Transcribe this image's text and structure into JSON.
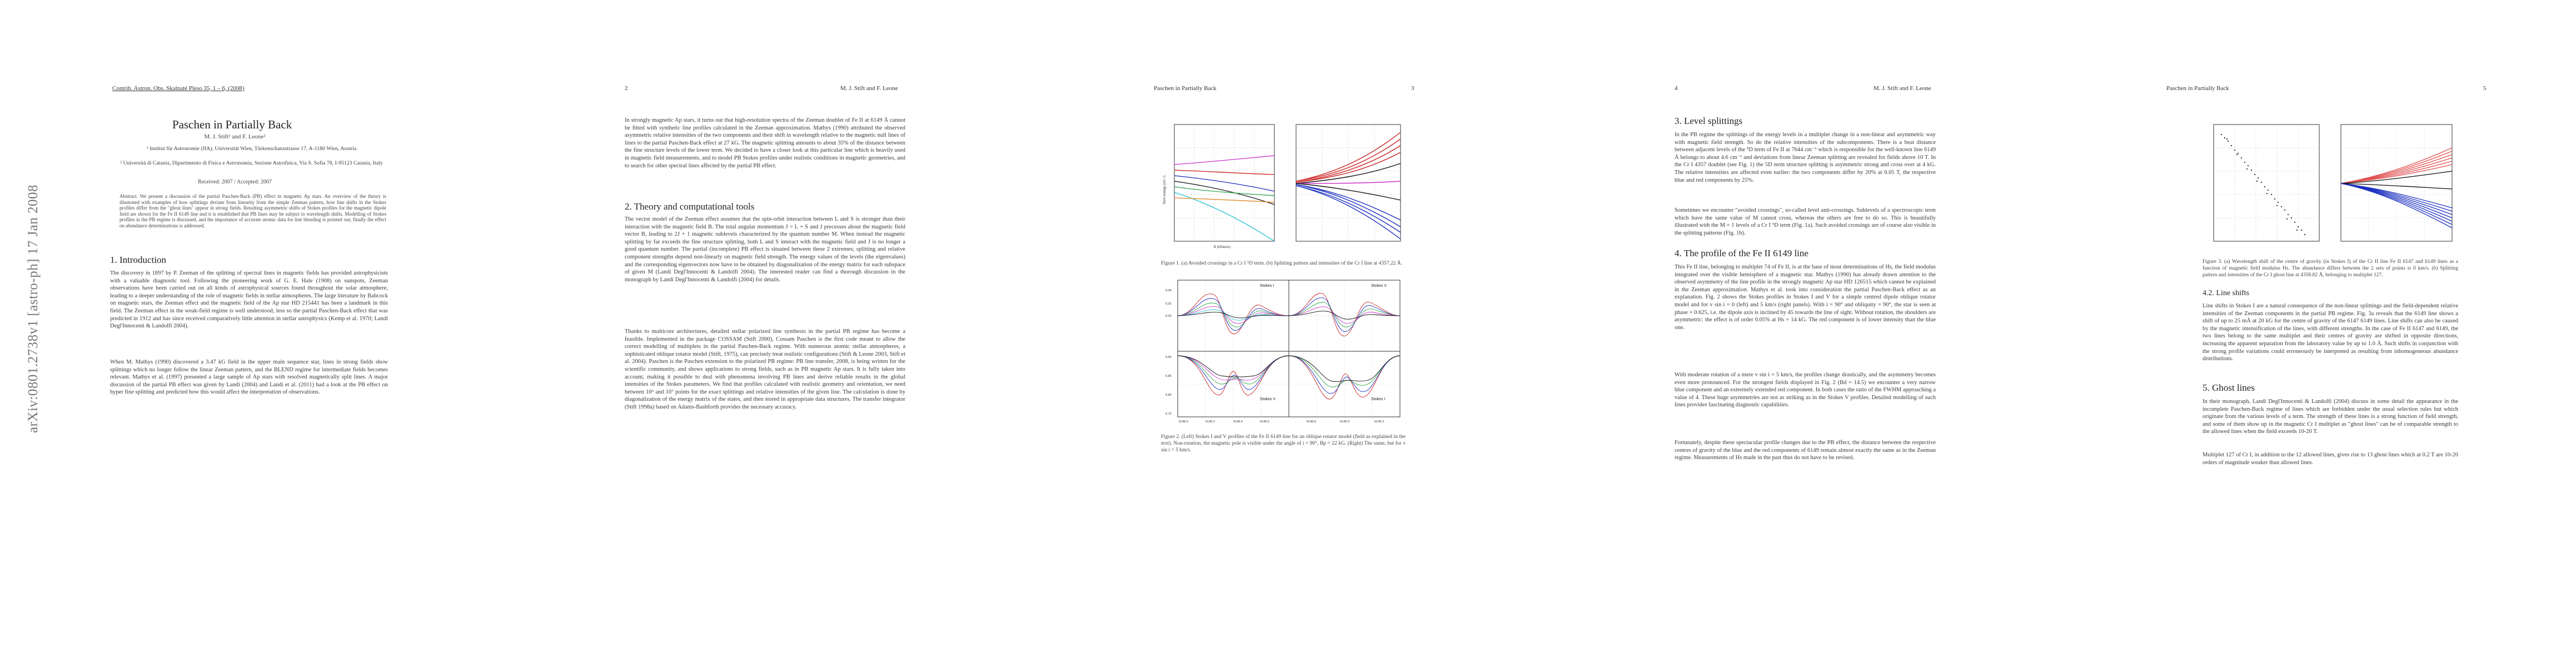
{
  "arxiv_stamp": "arXiv:0801.2738v1  [astro-ph]  17 Jan 2008",
  "page1": {
    "running_head": "Contrib. Astron. Obs. Skalnaté Pleso 35, 1 – 6, (2008)",
    "title": "Paschen in Partially Back",
    "authors": "M. J. Stift¹ and F. Leone²",
    "affil1": "¹ Institut für Astronomie (IfA), Universität Wien, Türkenschanzstrasse 17, A-1180 Wien, Austria",
    "affil2": "² Università di Catania, Dipartimento di Fisica e Astronomia, Sezione Astrofisica, Via S. Sofia 78, I-95123 Catania, Italy",
    "received": "Received: 2007 / Accepted: 2007",
    "abstract": "Abstract. We present a discussion of the partial Paschen-Back (PB) effect in magnetic Ap stars. An overview of the theory is illustrated with examples of how splittings deviate from linearity from the simple Zeeman pattern, how line shifts in the Stokes profiles differ from the \"ghost lines\" appear in strong fields. Resulting asymmetric shifts of Stokes profiles for the magnetic dipole field are shown for the Fe II 6149 line and it is established that PB lines may be subject to wavelength shifts. Modelling of Stokes profiles in the PB regime is discussed, and the importance of accurate atomic data for line blending is pointed out; finally the effect on abundance determinations is addressed.",
    "sec_title": "1. Introduction",
    "intro_p1": "The discovery in 1897 by P. Zeeman of the splitting of spectral lines in magnetic fields has provided astrophysicists with a valuable diagnostic tool. Following the pioneering work of G. E. Hale (1908) on sunspots, Zeeman observations have been carried out on all kinds of astrophysical sources found throughout the solar atmosphere, leading to a deeper understanding of the role of magnetic fields in stellar atmospheres. The large literature by Babcock on magnetic stars, the Zeeman effect and the magnetic field of the Ap star HD 215441 has been a landmark in this field. The Zeeman effect in the weak-field regime is well understood; less so the partial Paschen-Back effect that was predicted in 1912 and has since received comparatively little attention in stellar astrophysics (Kemp et al. 1970; Landi Degl'Innocenti & Landolfi 2004).",
    "intro_p2": "When M. Mathys (1990) discovered a 3.47 kG field in the upper main sequence star, lines in strong fields show splittings which no longer follow the linear Zeeman pattern, and the BLEND regime for intermediate fields becomes relevant. Mathys et al. (1997) presented a large sample of Ap stars with resolved magnetically split lines. A major discussion of the partial PB effect was given by Landi (2004) and Landi et al. (2011) had a look at the PB effect on hyper fine splitting and predicted how this would affect the interpretation of observations."
  },
  "page2": {
    "running_head": "M. J. Stift and F. Leone",
    "page_number": "2",
    "p1": "In strongly magnetic Ap stars, it turns out that high-resolution spectra of the Zeeman doublet of Fe II at 6149 Å cannot be fitted with synthetic line profiles calculated in the Zeeman approximation. Mathys (1990) attributed the observed asymmetric relative intensities of the two components and their shift in wavelength relative to the magnetic null lines of lines to the partial Paschen-Back effect at 27 kG. The magnetic splitting amounts to about 35% of the distance between the fine structure levels of the lower term. We decided to have a closer look at this particular line which is heavily used in magnetic field measurements, and to model PB Stokes profiles under realistic conditions in magnetic geometries, and to search for other spectral lines affected by the partial PB effect.",
    "sec_title": "2. Theory and computational tools",
    "p2": "The vector model of the Zeeman effect assumes that the spin-orbit interaction between L and S is stronger than their interaction with the magnetic field B. The total angular momentum J = L + S and J precesses about the magnetic field vector B, leading to 2J + 1 magnetic sublevels characterized by the quantum number M. When instead the magnetic splitting by far exceeds the fine structure splitting, both L and S interact with the magnetic field and J is no longer a good quantum number. The partial (incomplete) PB effect is situated between these 2 extremes; splitting and relative component strengths depend non-linearly on magnetic field strength. The energy values of the levels (the eigenvalues) and the corresponding eigenvectors now have to be obtained by diagonalization of the energy matrix for each subspace of given M (Landi Degl'Innocenti & Landolfi 2004). The interested reader can find a thorough discussion in the monograph by Landi Degl'Innocenti & Landolfi (2004) for details.",
    "p3": "Thanks to multicore architectures, detailed stellar polarized line synthesis in the partial PB regime has become a feasible. Implemented in the package COSSAM (Stift 2000), Cossam Paschen is the first code meant to allow the correct modelling of multiplets in the partial Paschen-Back regime. With numerous atomic stellar atmospheres, a sophisticated oblique rotator model (Stift, 1975), can precisely treat realistic configurations (Stift & Leone 2003, Stift et al. 2004). Paschen is the Paschen extension to the polarized PB regime: PB line transfer, 2008, is being written for the scientific community, and shows applications to strong fields, such as in PB magnetic Ap stars. It is fully taken into account, making it possible to deal with phenomena involving PB lines and derive reliable results in the global intensities of the Stokes parameters. We find that profiles calculated with realistic geometry and orientation, we need between 10⁶ and 10⁷ points for the exact splittings and relative intensities of the given line. The calculation is done by diagonalization of the energy matrix of the states, and then stored in appropriate data structures. The transfer integrator (Stift 1998a) based on Adams-Bashforth provides the necessary accuracy."
  },
  "page3": {
    "running_head": "Paschen in Partially Back",
    "page_number": "3",
    "fig1_caption": "Figure 1. (a) Avoided crossings in a Cr I ⁵D term. (b) Splitting pattern and intensities of the Cr I line at 4357.22 Å.",
    "fig2_caption": "Figure 2. (Left) Stokes I and V profiles of the Fe II 6149 line for an oblique rotator model (field as explained in the text). Non-rotation, the magnetic pole is visible under the angle of i = 90°, Bp = 22 kG. (Right) The same, but for v sin i = 5 km/s.",
    "fig2_panel_labels": [
      "Stokes I",
      "Stokes V",
      "Stokes V",
      "Stokes I"
    ],
    "fig2_x_ticks": [
      "6148.9",
      "6149.2",
      "6149.4",
      "6149.6",
      "6148.8",
      "6149.0",
      "6149.3"
    ],
    "fig2_y_ticks": [
      "0.04",
      "0.02",
      "0.00",
      "0.90",
      "0.85",
      "0.80",
      "0.75"
    ],
    "fig1_y_label": "Term energy (cm⁻¹)",
    "fig1_x_label": "B (kGauss)"
  },
  "page4": {
    "running_head": "M. J. Stift and F. Leone",
    "page_number": "4",
    "sec3_title": "3. Level splittings",
    "sec3_p1": "In the PB regime the splittings of the energy levels in a multiplet change in a non-linear and asymmetric way with magnetic field strength. So do the relative intensities of the subcomponents. There is a beat distance between adjacent levels of the ⁵D term of Fe II at 7644 cm⁻¹ which is responsible for the well-known line 6149 Å belongs to about 4.6 cm⁻¹ and deviations from linear Zeeman splitting are revealed for fields above 10 T. In the Cr I 4357 doublet (see Fig. 1) the 5D term structure splitting is asymmetric strong and cross over at 4 kG. The relative intensities are affected even earlier: the two components differ by 20% at 0.05 T, the respective blue and red components by 25%.",
    "sec3_p2": "Sometimes we encounter \"avoided crossings\", so-called level anti-crossings. Sublevels of a spectroscopic term which have the same value of M cannot cross, whereas the others are free to do so. This is beautifully illustrated with the M = 1 levels of a Cr I ⁵D term (Fig. 1a). Such avoided crossings are of course also visible in the splitting patterns (Fig. 1b).",
    "sec4_title": "4. The profile of the Fe II 6149 line",
    "sec4_p1": "This Fe II line, belonging to multiplet 74 of Fe II, is at the base of most determinations of Hs, the field modulus integrated over the visible hemisphere of a magnetic star. Mathys (1990) has already drawn attention to the observed asymmetry of the line profile in the strongly magnetic Ap star HD 126515 which cannot be explained in the Zeeman approximation. Mathys et al. took into consideration the partial Paschen-Back effect as an explanation. Fig. 2 shows the Stokes profiles in Stokes I and V for a simple centred dipole oblique rotator model and for v sin i = 0 (left) and 5 km/s (right panels). With i = 90° and obliquity = 90°, the star is seen at phase = 0.625, i.e. the dipole axis is inclined by 45 towards the line of sight. Without rotation, the shoulders are asymmetric: the effect is of order 0.05% at Hs = 14 kG. The red component is of lower intensity than the blue one.",
    "sec4_p2": "With moderate rotation of a mere v sin i = 5 km/s, the profiles change drastically, and the asymmetry becomes even more pronounced. For the strongest fields displayed in Fig. 2 (Bd = 14.5) we encounter a very narrow blue component and an extremely extended red component. In both cases the ratio of the FWHM approaching a value of 4. These huge asymmetries are not as striking as in the Stokes V profiles. Detailed modelling of such lines provides fascinating diagnostic capabilities.",
    "sec4_p3": "Fortunately, despite these spectacular profile changes due to the PB effect, the distance between the respective centres of gravity of the blue and the red components of 6149 remain almost exactly the same as in the Zeeman regime. Measurements of Hs made in the past thus do not have to be revised."
  },
  "page5": {
    "running_head": "Paschen in Partially Back",
    "page_number": "5",
    "fig3_caption": "Figure 3. (a) Wavelength shift of the centre of gravity (in Stokes I) of the Cr II line Fe II 6147 and 6149 lines as a function of magnetic field modulus Hs. The abundance differs between the 2 sets of points is 0 km/s. (b) Splitting pattern and intensities of the Cr I ghost line at 4358.82 Å, belonging to multiplet 127.",
    "sec42_title": "4.2. Line shifts",
    "sec42_p1": "Line shifts in Stokes I are a natural consequence of the non-linear splittings and the field-dependent relative intensities of the Zeeman components in the partial PB regime. Fig. 3a reveals that the 6149 line shows a shift of up to 25 mÅ at 20 kG for the centre of gravity of the 6147 6149 lines. Line shifts can also be caused by the magnetic intensification of the lines, with different strengths. In the case of Fe II 6147 and 6149, the two lines belong to the same multiplet and their centres of gravity are shifted in opposite directions, increasing the apparent separation from the laboratory value by up to 1.0 Å. Such shifts in conjunction with the strong profile variations could erroneously be interpreted as resulting from inhomogeneous abundance distributions.",
    "sec5_title": "5. Ghost lines",
    "sec5_p1": "In their monograph, Landi Degl'Innocenti & Landolfi (2004) discuss in some detail the appearance in the incomplete Paschen-Back regime of lines which are forbidden under the usual selection rules but which originate from the various levels of a term. The strength of these lines is a strong function of field strength, and some of them show up in the magnetic Cr I multiplet as \"ghost lines\" can be of comparable strength to the allowed lines when the field exceeds 10-20 T.",
    "sec5_p2": "Multiplet 127 of Cr I, in addition to the 12 allowed lines, gives rise to 13 ghost lines which at 0.2 T are 10-20 orders of magnitude weaker than allowed lines."
  },
  "colors": {
    "fig_black": "#111111",
    "fig_red": "#cc2222",
    "fig_blue": "#1a2fbf",
    "fig_cyan": "#22c0d8",
    "fig_magenta": "#cc33cc",
    "fig_green": "#2ea84a",
    "fig_orange": "#e08a2a"
  }
}
